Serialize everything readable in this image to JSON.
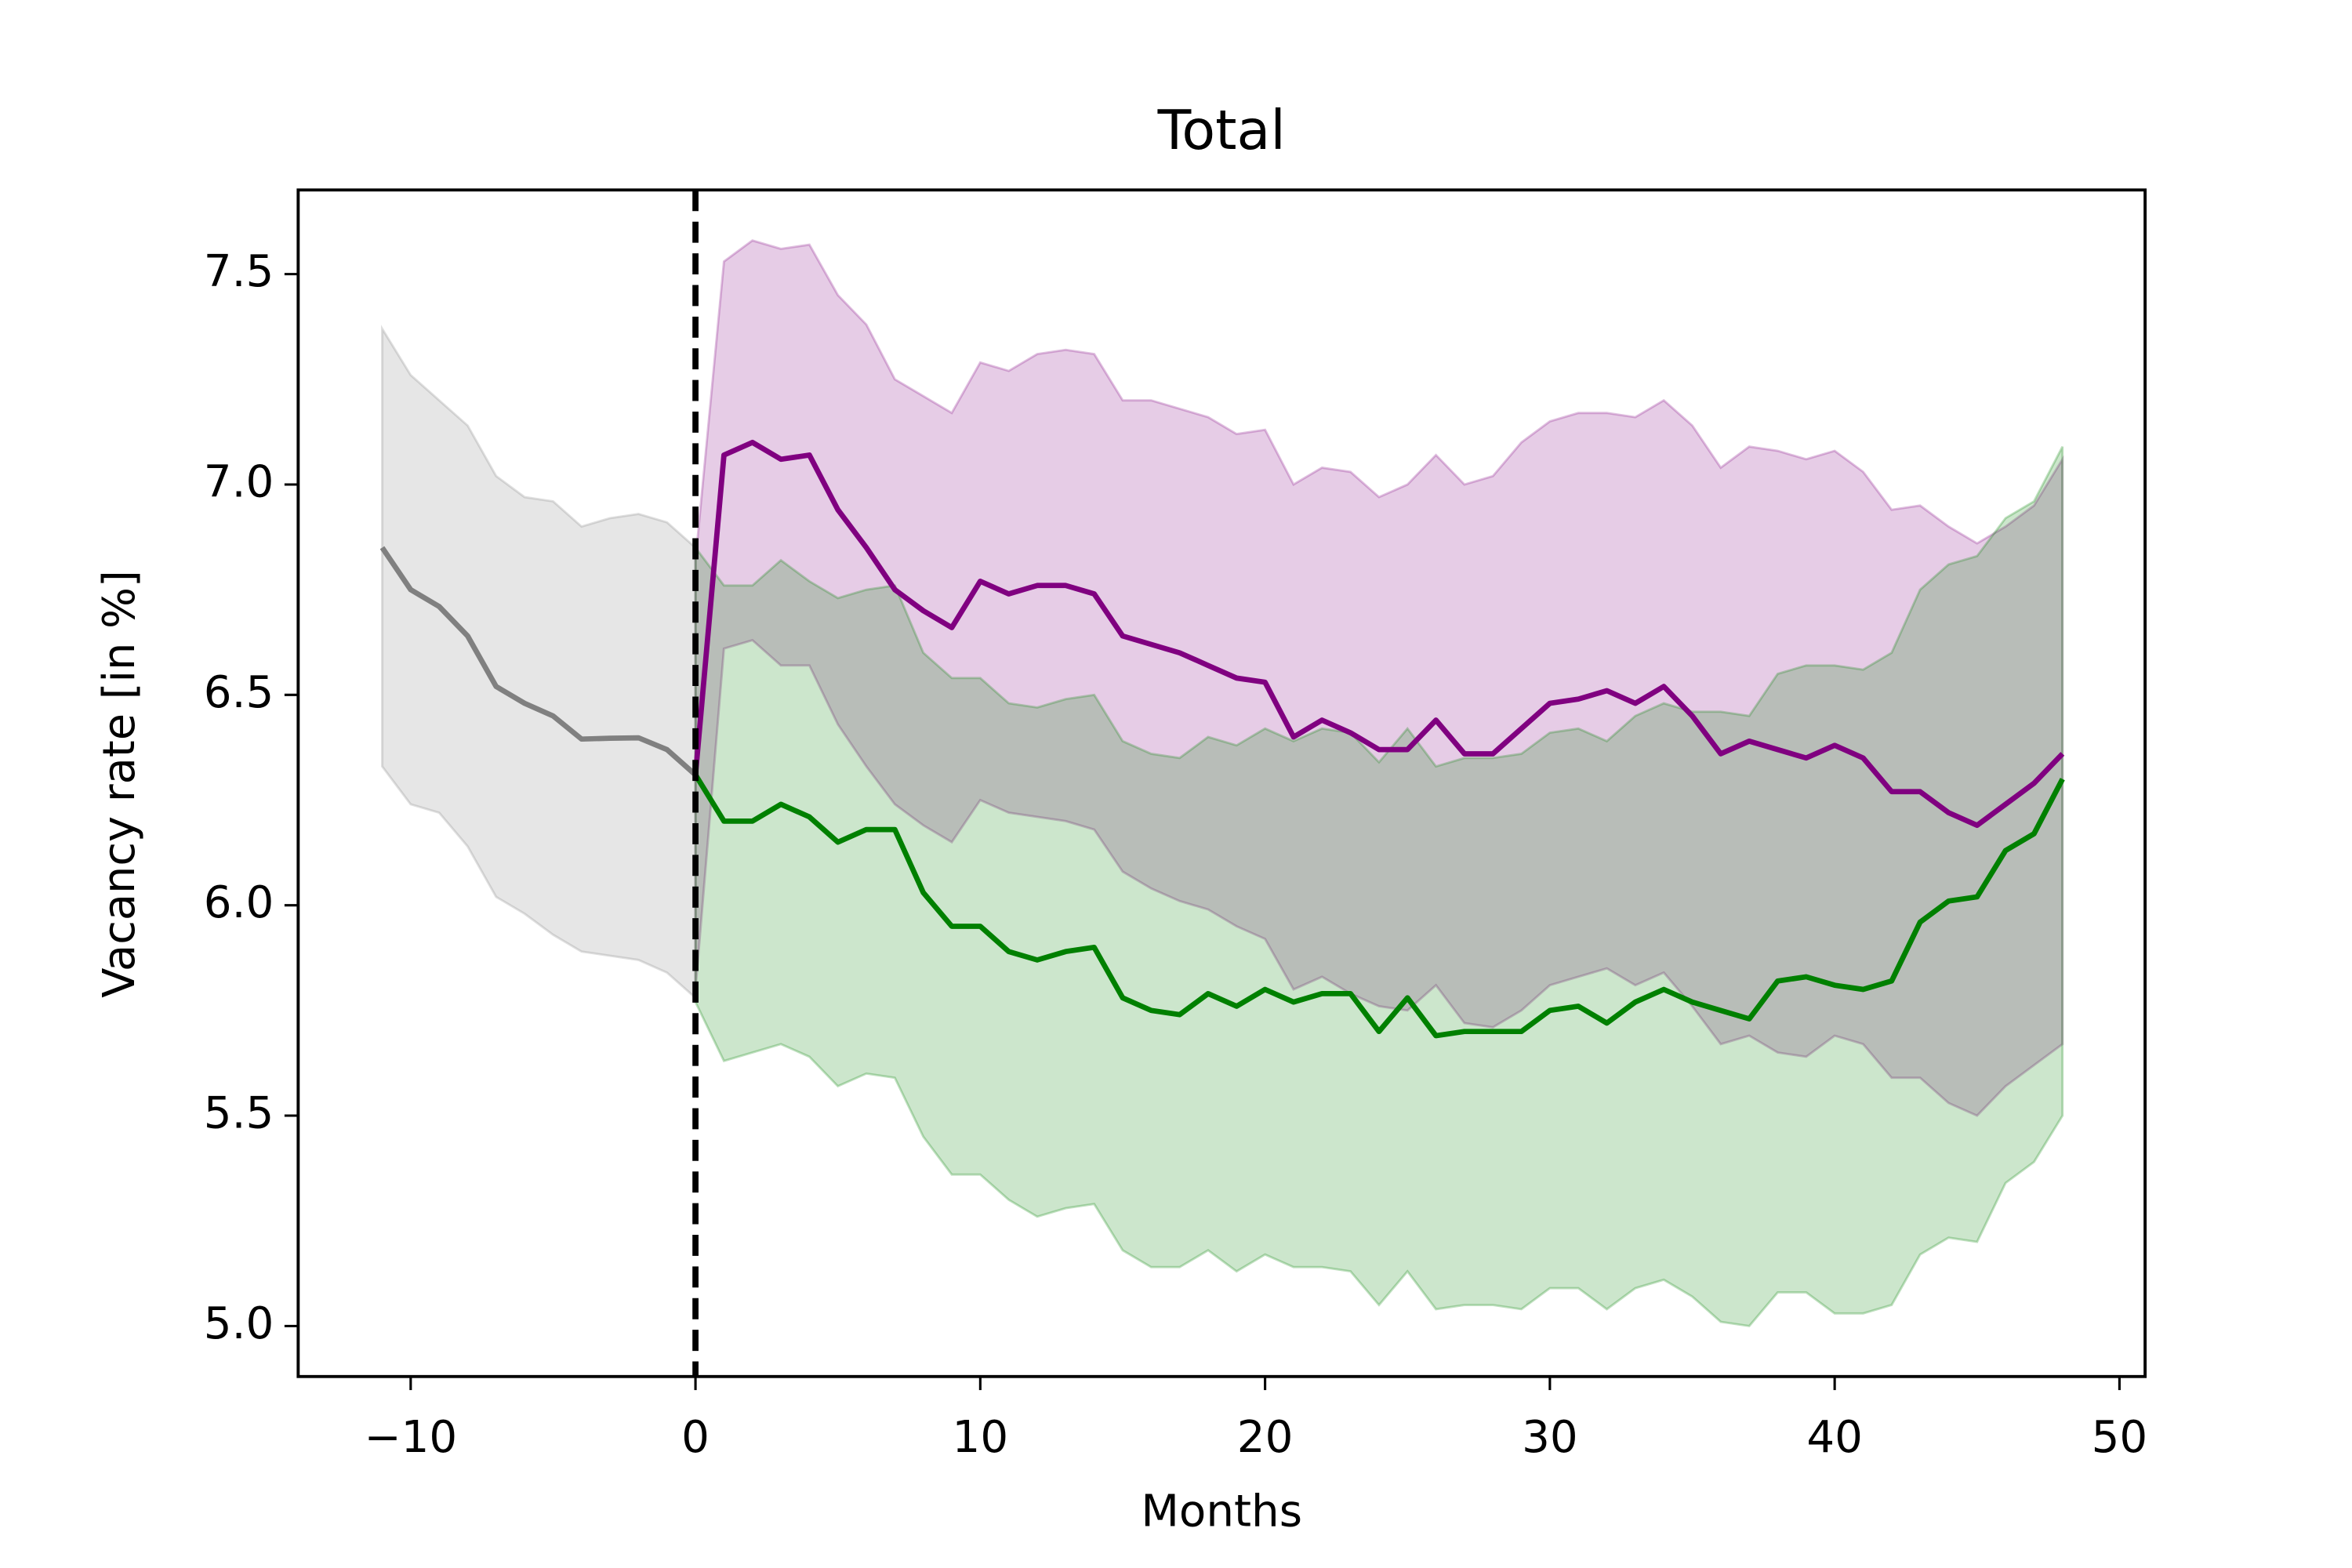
{
  "chart_data": {
    "type": "line",
    "title": "Total",
    "xlabel": "Months",
    "ylabel": "Vacancy rate [in %]",
    "xlim": [
      -13.95,
      50.9
    ],
    "ylim": [
      4.88,
      7.7
    ],
    "xticks": [
      {
        "value": -10,
        "label": "−10"
      },
      0,
      10,
      20,
      30,
      40,
      50
    ],
    "yticks": [
      {
        "value": 5,
        "label": "5.0"
      },
      5.5,
      {
        "value": 6,
        "label": "6.0"
      },
      6.5,
      {
        "value": 7,
        "label": "7.0"
      },
      7.5
    ],
    "vline": 0,
    "series": [
      {
        "color": "#808080",
        "x": [
          -11,
          -10,
          -9,
          -8,
          -7,
          -6,
          -5,
          -4,
          -3,
          -2,
          -1,
          0
        ],
        "values": [
          6.85,
          6.75,
          6.71,
          6.64,
          6.52,
          6.48,
          6.45,
          6.395,
          6.397,
          6.398,
          6.37,
          6.31
        ],
        "upper": [
          7.37,
          7.26,
          7.2,
          7.14,
          7.02,
          6.97,
          6.96,
          6.9,
          6.92,
          6.93,
          6.91,
          6.85
        ],
        "lower": [
          6.33,
          6.24,
          6.22,
          6.14,
          6.02,
          5.98,
          5.93,
          5.89,
          5.88,
          5.87,
          5.84,
          5.78
        ]
      },
      {
        "color": "#800080",
        "x": [
          0,
          1,
          2,
          3,
          4,
          5,
          6,
          7,
          8,
          9,
          10,
          11,
          12,
          13,
          14,
          15,
          16,
          17,
          18,
          19,
          20,
          21,
          22,
          23,
          24,
          25,
          26,
          27,
          28,
          29,
          30,
          31,
          32,
          33,
          34,
          35,
          36,
          37,
          38,
          39,
          40,
          41,
          42,
          43,
          44,
          45,
          46,
          47,
          48
        ],
        "values": [
          6.31,
          7.07,
          7.1,
          7.06,
          7.07,
          6.94,
          6.85,
          6.75,
          6.7,
          6.66,
          6.77,
          6.74,
          6.76,
          6.76,
          6.74,
          6.64,
          6.62,
          6.6,
          6.57,
          6.54,
          6.53,
          6.4,
          6.44,
          6.41,
          6.37,
          6.37,
          6.44,
          6.36,
          6.36,
          6.42,
          6.48,
          6.49,
          6.51,
          6.48,
          6.52,
          6.45,
          6.36,
          6.39,
          6.37,
          6.35,
          6.38,
          6.35,
          6.27,
          6.27,
          6.22,
          6.19,
          6.24,
          6.29,
          6.36
        ],
        "upper": [
          6.82,
          7.53,
          7.58,
          7.56,
          7.57,
          7.45,
          7.38,
          7.25,
          7.21,
          7.17,
          7.29,
          7.27,
          7.31,
          7.32,
          7.31,
          7.2,
          7.2,
          7.18,
          7.16,
          7.12,
          7.13,
          7.0,
          7.04,
          7.03,
          6.97,
          7.0,
          7.07,
          7.0,
          7.02,
          7.1,
          7.15,
          7.17,
          7.17,
          7.16,
          7.2,
          7.14,
          7.04,
          7.09,
          7.08,
          7.06,
          7.08,
          7.03,
          6.94,
          6.95,
          6.9,
          6.86,
          6.9,
          6.95,
          7.06
        ],
        "lower": [
          5.8,
          6.61,
          6.63,
          6.57,
          6.57,
          6.43,
          6.33,
          6.24,
          6.19,
          6.15,
          6.25,
          6.22,
          6.21,
          6.2,
          6.18,
          6.08,
          6.04,
          6.01,
          5.99,
          5.95,
          5.92,
          5.8,
          5.83,
          5.79,
          5.76,
          5.75,
          5.81,
          5.72,
          5.71,
          5.75,
          5.81,
          5.83,
          5.85,
          5.81,
          5.84,
          5.76,
          5.67,
          5.69,
          5.65,
          5.64,
          5.69,
          5.67,
          5.59,
          5.59,
          5.53,
          5.5,
          5.57,
          5.62,
          5.67
        ]
      },
      {
        "color": "#008000",
        "x": [
          0,
          1,
          2,
          3,
          4,
          5,
          6,
          7,
          8,
          9,
          10,
          11,
          12,
          13,
          14,
          15,
          16,
          17,
          18,
          19,
          20,
          21,
          22,
          23,
          24,
          25,
          26,
          27,
          28,
          29,
          30,
          31,
          32,
          33,
          34,
          35,
          36,
          37,
          38,
          39,
          40,
          41,
          42,
          43,
          44,
          45,
          46,
          47,
          48
        ],
        "values": [
          6.31,
          6.2,
          6.2,
          6.24,
          6.21,
          6.15,
          6.18,
          6.18,
          6.03,
          5.95,
          5.95,
          5.89,
          5.87,
          5.89,
          5.9,
          5.78,
          5.75,
          5.74,
          5.79,
          5.76,
          5.8,
          5.77,
          5.79,
          5.79,
          5.7,
          5.78,
          5.69,
          5.7,
          5.7,
          5.7,
          5.75,
          5.76,
          5.72,
          5.77,
          5.8,
          5.77,
          5.75,
          5.73,
          5.82,
          5.83,
          5.81,
          5.8,
          5.82,
          5.96,
          6.01,
          6.02,
          6.13,
          6.17,
          6.3
        ],
        "upper": [
          6.85,
          6.76,
          6.76,
          6.82,
          6.77,
          6.73,
          6.75,
          6.76,
          6.6,
          6.54,
          6.54,
          6.48,
          6.47,
          6.49,
          6.5,
          6.39,
          6.36,
          6.35,
          6.4,
          6.38,
          6.42,
          6.39,
          6.42,
          6.41,
          6.34,
          6.42,
          6.33,
          6.35,
          6.35,
          6.36,
          6.41,
          6.42,
          6.39,
          6.45,
          6.48,
          6.46,
          6.46,
          6.45,
          6.55,
          6.57,
          6.57,
          6.56,
          6.6,
          6.75,
          6.81,
          6.83,
          6.92,
          6.96,
          7.09
        ],
        "lower": [
          5.77,
          5.63,
          5.65,
          5.67,
          5.64,
          5.57,
          5.6,
          5.59,
          5.45,
          5.36,
          5.36,
          5.3,
          5.26,
          5.28,
          5.29,
          5.18,
          5.14,
          5.14,
          5.18,
          5.13,
          5.17,
          5.14,
          5.14,
          5.13,
          5.05,
          5.13,
          5.04,
          5.05,
          5.05,
          5.04,
          5.09,
          5.09,
          5.04,
          5.09,
          5.11,
          5.07,
          5.01,
          5.0,
          5.08,
          5.08,
          5.03,
          5.03,
          5.05,
          5.17,
          5.21,
          5.2,
          5.34,
          5.39,
          5.5
        ]
      }
    ]
  }
}
